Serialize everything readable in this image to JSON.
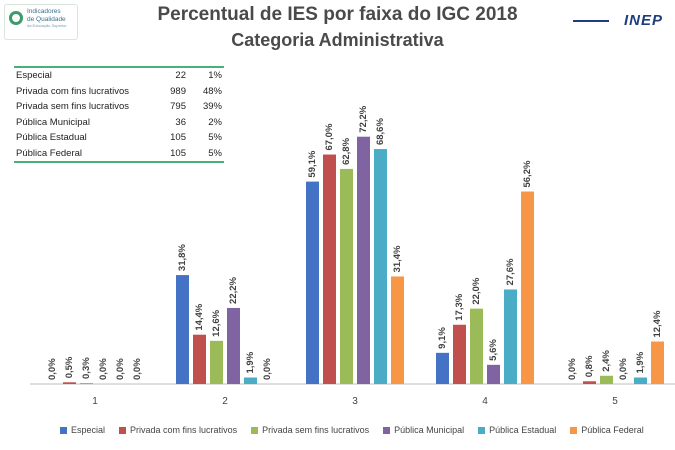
{
  "header": {
    "logo_line1": "Indicadores",
    "logo_line2": "de Qualidade",
    "logo_line3": "da Educação Superior",
    "title_line1": "Percentual de IES por faixa do IGC 2018",
    "title_line2": "Categoria Administrativa",
    "brand": "INEP"
  },
  "summary_table": [
    {
      "category": "Especial",
      "count": "22",
      "percent": "1%"
    },
    {
      "category": "Privada com fins lucrativos",
      "count": "989",
      "percent": "48%"
    },
    {
      "category": "Privada sem fins lucrativos",
      "count": "795",
      "percent": "39%"
    },
    {
      "category": "Pública Municipal",
      "count": "36",
      "percent": "2%"
    },
    {
      "category": "Pública Estadual",
      "count": "105",
      "percent": "5%"
    },
    {
      "category": "Pública Federal",
      "count": "105",
      "percent": "5%"
    }
  ],
  "chart_data": {
    "type": "bar",
    "title": "Percentual de IES por faixa do IGC 2018",
    "subtitle": "Categoria Administrativa",
    "categories": [
      "1",
      "2",
      "3",
      "4",
      "5"
    ],
    "ylim": [
      0,
      80
    ],
    "grid": false,
    "legend_position": "bottom",
    "series": [
      {
        "name": "Especial",
        "color": "#4472c4",
        "values": [
          0.0,
          31.8,
          59.1,
          9.1,
          0.0
        ],
        "labels": [
          "0,0%",
          "31,8%",
          "59,1%",
          "9,1%",
          "0,0%"
        ]
      },
      {
        "name": "Privada com fins lucrativos",
        "color": "#c0504d",
        "values": [
          0.5,
          14.4,
          67.0,
          17.3,
          0.8
        ],
        "labels": [
          "0,5%",
          "14,4%",
          "67,0%",
          "17,3%",
          "0,8%"
        ]
      },
      {
        "name": "Privada sem fins lucrativos",
        "color": "#9bbb59",
        "values": [
          0.3,
          12.6,
          62.8,
          22.0,
          2.4
        ],
        "labels": [
          "0,3%",
          "12,6%",
          "62,8%",
          "22,0%",
          "2,4%"
        ]
      },
      {
        "name": "Pública Municipal",
        "color": "#8064a2",
        "values": [
          0.0,
          22.2,
          72.2,
          5.6,
          0.0
        ],
        "labels": [
          "0,0%",
          "22,2%",
          "72,2%",
          "5,6%",
          "0,0%"
        ]
      },
      {
        "name": "Pública Estadual",
        "color": "#4bacc6",
        "values": [
          0.0,
          1.9,
          68.6,
          27.6,
          1.9
        ],
        "labels": [
          "0,0%",
          "1,9%",
          "68,6%",
          "27,6%",
          "1,9%"
        ]
      },
      {
        "name": "Pública Federal",
        "color": "#f79646",
        "values": [
          0.0,
          0.0,
          31.4,
          56.2,
          12.4
        ],
        "labels": [
          "0,0%",
          "0,0%",
          "31,4%",
          "56,2%",
          "12,4%"
        ]
      }
    ]
  }
}
